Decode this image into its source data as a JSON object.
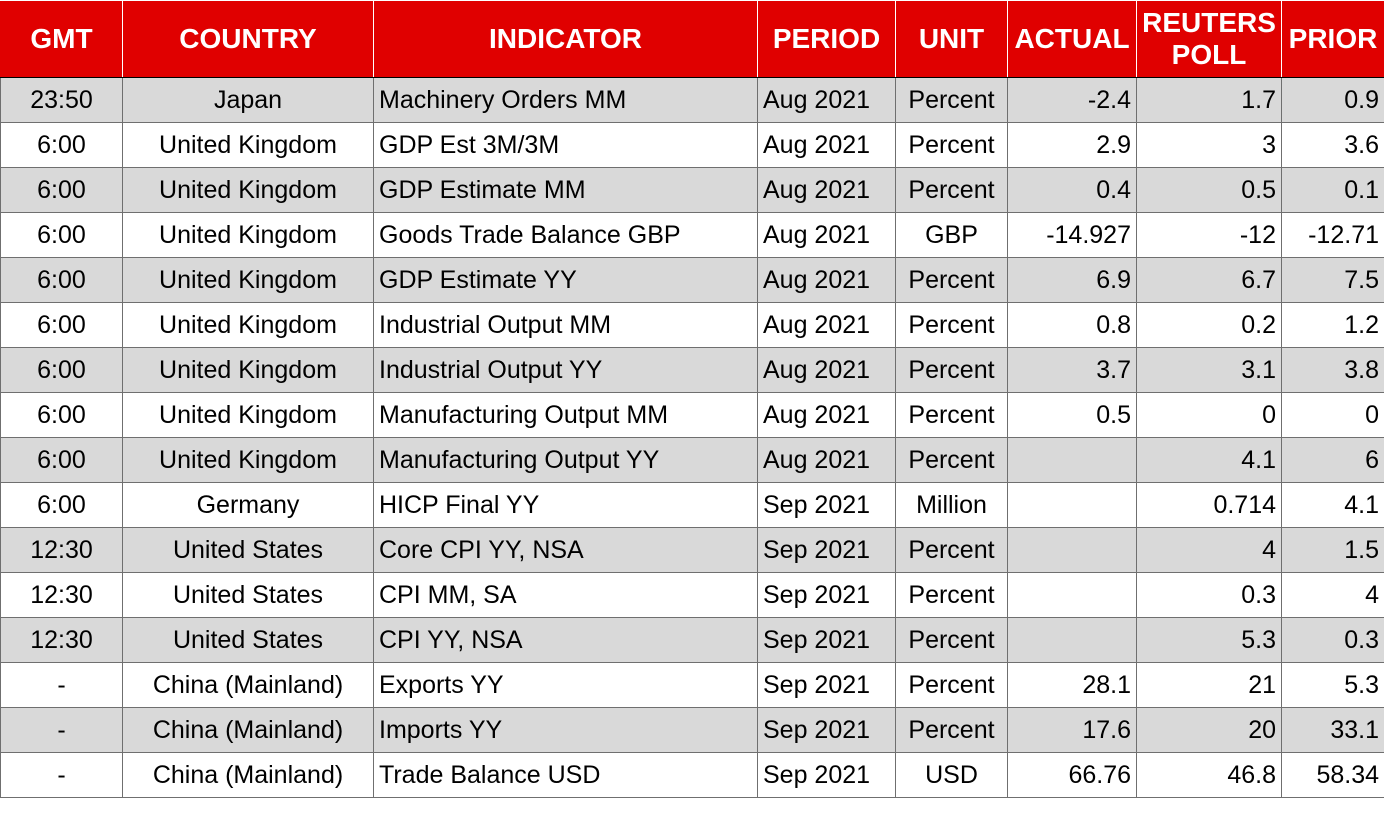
{
  "headers": {
    "gmt": "GMT",
    "country": "COUNTRY",
    "indicator": "INDICATOR",
    "period": "PERIOD",
    "unit": "UNIT",
    "actual": "ACTUAL",
    "reuters_line1": "REUTERS",
    "reuters_line2": "POLL",
    "prior": "PRIOR"
  },
  "colors": {
    "header_bg": "#e00000",
    "header_text": "#ffffff",
    "stripe": "#d9d9d9"
  },
  "rows": [
    {
      "gmt": "23:50",
      "country": "Japan",
      "indicator": "Machinery Orders MM",
      "period": "Aug 2021",
      "unit": "Percent",
      "actual": "-2.4",
      "poll": "1.7",
      "prior": "0.9"
    },
    {
      "gmt": "6:00",
      "country": "United Kingdom",
      "indicator": "GDP Est 3M/3M",
      "period": "Aug 2021",
      "unit": "Percent",
      "actual": "2.9",
      "poll": "3",
      "prior": "3.6"
    },
    {
      "gmt": "6:00",
      "country": "United Kingdom",
      "indicator": "GDP Estimate MM",
      "period": "Aug 2021",
      "unit": "Percent",
      "actual": "0.4",
      "poll": "0.5",
      "prior": "0.1"
    },
    {
      "gmt": "6:00",
      "country": "United Kingdom",
      "indicator": "Goods Trade Balance GBP",
      "period": "Aug 2021",
      "unit": "GBP",
      "actual": "-14.927",
      "poll": "-12",
      "prior": "-12.71"
    },
    {
      "gmt": "6:00",
      "country": "United Kingdom",
      "indicator": "GDP Estimate YY",
      "period": "Aug 2021",
      "unit": "Percent",
      "actual": "6.9",
      "poll": "6.7",
      "prior": "7.5"
    },
    {
      "gmt": "6:00",
      "country": "United Kingdom",
      "indicator": "Industrial Output MM",
      "period": "Aug 2021",
      "unit": "Percent",
      "actual": "0.8",
      "poll": "0.2",
      "prior": "1.2"
    },
    {
      "gmt": "6:00",
      "country": "United Kingdom",
      "indicator": "Industrial Output YY",
      "period": "Aug 2021",
      "unit": "Percent",
      "actual": "3.7",
      "poll": "3.1",
      "prior": "3.8"
    },
    {
      "gmt": "6:00",
      "country": "United Kingdom",
      "indicator": "Manufacturing Output MM",
      "period": "Aug 2021",
      "unit": "Percent",
      "actual": "0.5",
      "poll": "0",
      "prior": "0"
    },
    {
      "gmt": "6:00",
      "country": "United Kingdom",
      "indicator": "Manufacturing Output YY",
      "period": "Aug 2021",
      "unit": "Percent",
      "actual": "",
      "poll": "4.1",
      "prior": "6"
    },
    {
      "gmt": "6:00",
      "country": "Germany",
      "indicator": "HICP Final YY",
      "period": "Sep 2021",
      "unit": "Million",
      "actual": "",
      "poll": "0.714",
      "prior": "4.1"
    },
    {
      "gmt": "12:30",
      "country": "United States",
      "indicator": "Core CPI YY, NSA",
      "period": "Sep 2021",
      "unit": "Percent",
      "actual": "",
      "poll": "4",
      "prior": "1.5"
    },
    {
      "gmt": "12:30",
      "country": "United States",
      "indicator": "CPI MM, SA",
      "period": "Sep 2021",
      "unit": "Percent",
      "actual": "",
      "poll": "0.3",
      "prior": "4"
    },
    {
      "gmt": "12:30",
      "country": "United States",
      "indicator": "CPI YY, NSA",
      "period": "Sep 2021",
      "unit": "Percent",
      "actual": "",
      "poll": "5.3",
      "prior": "0.3"
    },
    {
      "gmt": "-",
      "country": "China (Mainland)",
      "indicator": "Exports YY",
      "period": "Sep 2021",
      "unit": "Percent",
      "actual": "28.1",
      "poll": "21",
      "prior": "5.3"
    },
    {
      "gmt": "-",
      "country": "China (Mainland)",
      "indicator": "Imports YY",
      "period": "Sep 2021",
      "unit": "Percent",
      "actual": "17.6",
      "poll": "20",
      "prior": "33.1"
    },
    {
      "gmt": "-",
      "country": "China (Mainland)",
      "indicator": "Trade Balance USD",
      "period": "Sep 2021",
      "unit": "USD",
      "actual": "66.76",
      "poll": "46.8",
      "prior": "58.34"
    }
  ]
}
